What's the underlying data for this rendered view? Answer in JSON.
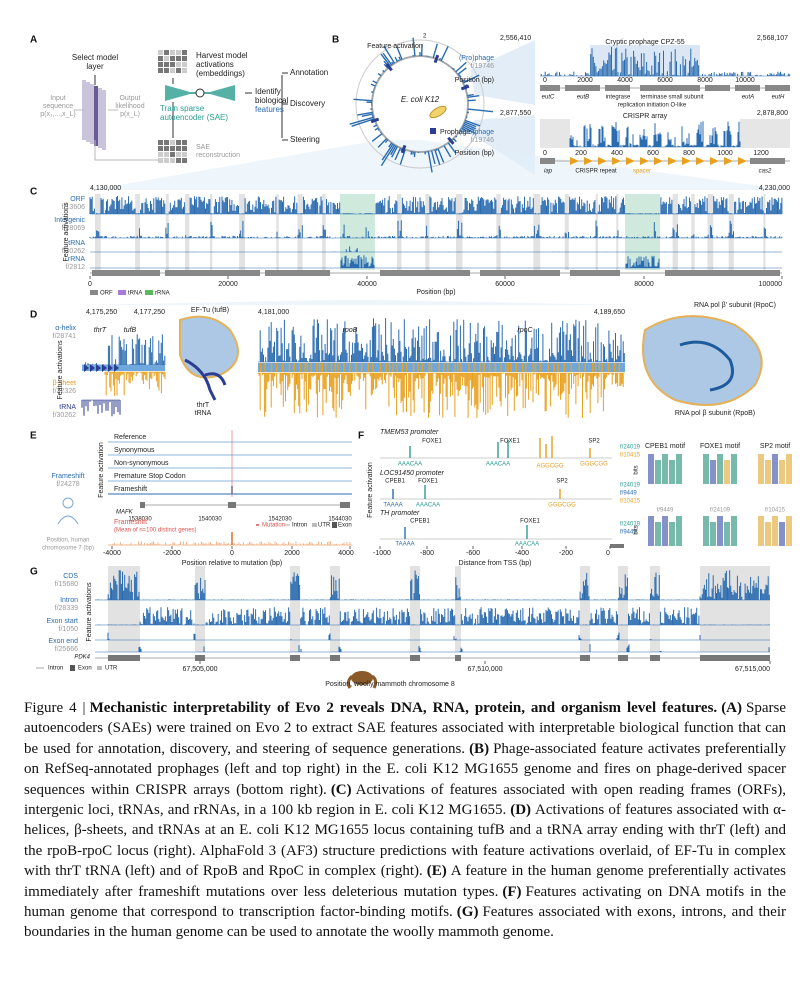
{
  "figure": {
    "panels": [
      {
        "letter": "A",
        "texts": [
          "Select model",
          "layer",
          "Input",
          "sequence",
          "p(x₁,...,x_L)",
          "Output",
          "likelihood",
          "p(x_L)",
          "Harvest model",
          "activations",
          "(embeddings)",
          "Train sparse",
          "autoencoder (SAE)",
          "SAE",
          "reconstruction",
          "Identify",
          "biological",
          "features",
          "Annotation",
          "Discovery",
          "Steering"
        ]
      },
      {
        "letter": "B",
        "texts": [
          "Feature activation",
          "2",
          "E. coli K12",
          "Prophage",
          "2,556,410",
          "Cryptic prophage CPZ-55",
          "2,568,107",
          "(Pro)phage",
          "f/19746",
          "Position (bp)",
          "0",
          "2000",
          "4000",
          "6000",
          "8000",
          "10000",
          "eutC",
          "eutB",
          "integrase",
          "terminase small subunit",
          "replication initiation O-like",
          "eutA",
          "eutH",
          "2,877,550",
          "CRISPR array",
          "2,878,800",
          "(Pro)phage",
          "f/19746",
          "Position (bp)",
          "0",
          "200",
          "400",
          "600",
          "800",
          "1000",
          "1200",
          "iap",
          "CRISPR repeat",
          "spacer",
          "cas2"
        ]
      },
      {
        "letter": "C",
        "texts": [
          "4,130,000",
          "4,230,000",
          "ORF",
          "f/13606",
          "Intergenic",
          "f/28069",
          "tRNA",
          "f/30262",
          "rRNA",
          "f/2812",
          "Feature activations",
          "0",
          "20000",
          "40000",
          "60000",
          "80000",
          "100000",
          "Position (bp)",
          "ORF",
          "tRNA",
          "rRNA"
        ]
      },
      {
        "letter": "D",
        "texts": [
          "4,175,250",
          "4,177,250",
          "α-helix",
          "f/28741",
          "β-sheet",
          "f/22326",
          "tRNA",
          "f/30262",
          "Feature activations",
          "thrT",
          "tufB",
          "EF-Tu (tufB)",
          "thrT",
          "tRNA",
          "4,181,000",
          "4,189,650",
          "rpoB",
          "rpoC",
          "RNA pol β' subunit (RpoC)",
          "RNA pol β subunit (RpoB)"
        ]
      },
      {
        "letter": "E",
        "texts": [
          "Frameshift",
          "f/24278",
          "Position, human",
          "chromosome 7 (bp)",
          "Feature activation",
          "Reference",
          "Synonymous",
          "Non-synonymous",
          "Premature Stop Codon",
          "Frameshift",
          "MAFK",
          "1538030",
          "1540030",
          "1542030",
          "1544030",
          "Frameshift",
          "(Mean of n=100 distinct genes)",
          "Mutation",
          "Intron",
          "UTR",
          "Exon",
          "-4000",
          "-2000",
          "0",
          "2000",
          "4000",
          "Position relative to mutation (bp)"
        ]
      },
      {
        "letter": "F",
        "texts": [
          "TMEM53 promoter",
          "FOXE1",
          "FOXE1",
          "SP2",
          "AAACAA",
          "AAACAA",
          "AGGCGG",
          "GGGCGG",
          "f/24019",
          "f/10415",
          "LOC91450 promoter",
          "CPEB1",
          "FOXE1",
          "SP2",
          "TAAAA",
          "AAACAA",
          "GGGCGG",
          "f/24019",
          "f/9449",
          "f/10415",
          "TH promoter",
          "CPEB1",
          "FOXE1",
          "TAAAA",
          "AAACAA",
          "f/24019",
          "f/9449",
          "Feature activation",
          "-1000",
          "-800",
          "-600",
          "-400",
          "-200",
          "0",
          "Distance from TSS (bp)",
          "CPEB1 motif",
          "FOXE1 motif",
          "SP2 motif",
          "f/9449",
          "f/24109",
          "f/10415",
          "bits",
          "bits"
        ]
      },
      {
        "letter": "G",
        "texts": [
          "CDS",
          "f/15680",
          "Intron",
          "f/28339",
          "Exon start",
          "f/1050",
          "Exon end",
          "f/25666",
          "Feature activations",
          "PDK4",
          "Intron",
          "Exon",
          "UTR",
          "67,505,000",
          "67,510,000",
          "67,515,000",
          "Position, woolly mammoth chromosome 8"
        ]
      }
    ],
    "caption": {
      "label": "Figure 4 |",
      "title": "Mechanistic interpretability of Evo 2 reveals DNA, RNA, protein, and organism level features.",
      "parts": [
        {
          "letter": "(A)",
          "text": "Sparse autoencoders (SAEs) were trained on Evo 2 to extract SAE features associated with interpretable biological function that can be used for annotation, discovery, and steering of sequence generations."
        },
        {
          "letter": "(B)",
          "text": "Phage-associated feature activates preferentially on RefSeq-annotated prophages (left and top right) in the E. coli K12 MG1655 genome and fires on phage-derived spacer sequences within CRISPR arrays (bottom right)."
        },
        {
          "letter": "(C)",
          "text": "Activations of features associated with open reading frames (ORFs), intergenic loci, tRNAs, and rRNAs, in a 100 kb region in E. coli K12 MG1655."
        },
        {
          "letter": "(D)",
          "text": "Activations of features associated with α-helices, β-sheets, and tRNAs at an E. coli K12 MG1655 locus containing tufB and a tRNA array ending with thrT (left) and the rpoB-rpoC locus (right). AlphaFold 3 (AF3) structure predictions with feature activations overlaid, of EF-Tu in complex with thrT tRNA (left) and of RpoB and RpoC in complex (right)."
        },
        {
          "letter": "(E)",
          "text": "A feature in the human genome preferentially activates immediately after frameshift mutations over less deleterious mutation types."
        },
        {
          "letter": "(F)",
          "text": "Features activating on DNA motifs in the human genome that correspond to transcription factor-binding motifs."
        },
        {
          "letter": "(G)",
          "text": "Features associated with exons, introns, and their boundaries in the human genome can be used to annotate the woolly mammoth genome."
        }
      ]
    }
  }
}
